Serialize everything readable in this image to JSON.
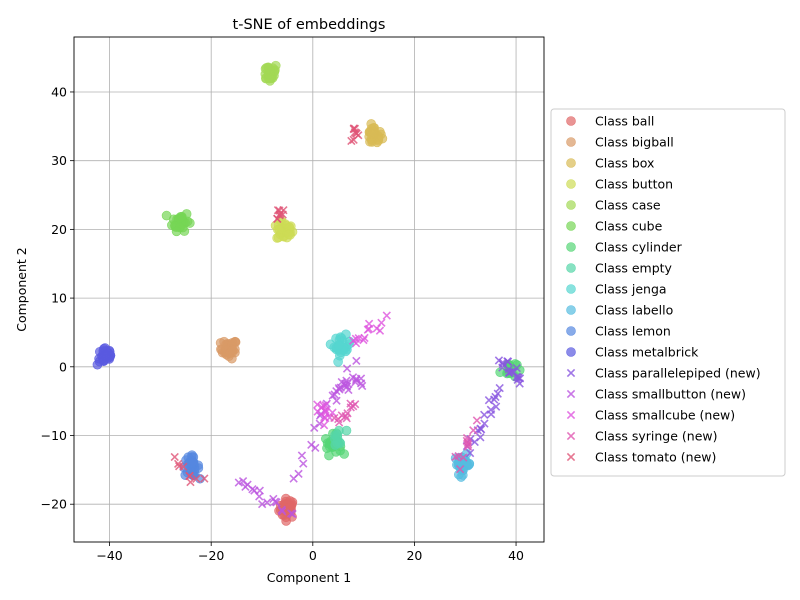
{
  "chart_data": {
    "type": "scatter",
    "title": "t-SNE of embeddings",
    "xlabel": "Component 1",
    "ylabel": "Component 2",
    "xlim": [
      -47,
      45.5
    ],
    "ylim": [
      -25.5,
      48
    ],
    "xticks": [
      -40,
      -20,
      0,
      20,
      40
    ],
    "yticks": [
      -20,
      -10,
      0,
      10,
      20,
      30,
      40
    ],
    "grid": true,
    "legend_position": "right, outside plot",
    "series": [
      {
        "name": "Class ball",
        "marker": "circle",
        "color": "#e06666",
        "centers": [
          [
            -5,
            -20.6
          ]
        ],
        "points": 34
      },
      {
        "name": "Class bigball",
        "marker": "circle",
        "color": "#d99a66",
        "centers": [
          [
            -16.5,
            2.6
          ]
        ],
        "points": 30
      },
      {
        "name": "Class box",
        "marker": "circle",
        "color": "#d8bb55",
        "centers": [
          [
            12,
            33.6
          ]
        ],
        "points": 30
      },
      {
        "name": "Class button",
        "marker": "circle",
        "color": "#cddc55",
        "centers": [
          [
            -5.5,
            19.8
          ]
        ],
        "points": 32
      },
      {
        "name": "Class case",
        "marker": "circle",
        "color": "#a3d955",
        "centers": [
          [
            -8.5,
            42.8
          ]
        ],
        "points": 30
      },
      {
        "name": "Class cube",
        "marker": "circle",
        "color": "#76d655",
        "centers": [
          [
            -26,
            21.2
          ]
        ],
        "points": 30
      },
      {
        "name": "Class cylinder",
        "marker": "circle",
        "color": "#55d676",
        "centers": [
          [
            4,
            -11.3
          ],
          [
            38.5,
            -0.3
          ]
        ],
        "points": [
          26,
          16
        ]
      },
      {
        "name": "Class empty",
        "marker": "circle",
        "color": "#55d6a8",
        "centers": [
          [
            5,
            -10.5
          ]
        ],
        "points": 10
      },
      {
        "name": "Class jenga",
        "marker": "circle",
        "color": "#55d6d0",
        "centers": [
          [
            5.8,
            3.1
          ]
        ],
        "points": 26
      },
      {
        "name": "Class labello",
        "marker": "circle",
        "color": "#55bce0",
        "centers": [
          [
            29.5,
            -14.2
          ]
        ],
        "points": 30
      },
      {
        "name": "Class lemon",
        "marker": "circle",
        "color": "#5588e0",
        "centers": [
          [
            -24,
            -14.5
          ]
        ],
        "points": 30
      },
      {
        "name": "Class metalbrick",
        "marker": "circle",
        "color": "#5a5ae0",
        "centers": [
          [
            -40.8,
            1.6
          ]
        ],
        "points": 32
      },
      {
        "name": "Class parallelepiped (new)",
        "marker": "x",
        "color": "#8855e0",
        "segments": [
          [
            [
              31,
              -12
            ],
            [
              37,
              -3.5
            ]
          ],
          [
            [
              37,
              0.8
            ],
            [
              41,
              -2.2
            ]
          ]
        ],
        "points": 36
      },
      {
        "name": "Class smallbutton (new)",
        "marker": "x",
        "color": "#bb55e0",
        "segments": [
          [
            [
              -15,
              -17
            ],
            [
              -4,
              -21.5
            ]
          ],
          [
            [
              -4,
              -16.5
            ],
            [
              8,
              1
            ]
          ],
          [
            [
              4,
              -4
            ],
            [
              10,
              -2
            ]
          ]
        ],
        "points": 50
      },
      {
        "name": "Class smallcube (new)",
        "marker": "x",
        "color": "#df55df",
        "segments": [
          [
            [
              2,
              -5
            ],
            [
              3,
              -8
            ]
          ],
          [
            [
              8,
              3.5
            ],
            [
              14,
              6.5
            ]
          ]
        ],
        "points": 26
      },
      {
        "name": "Class syringe (new)",
        "marker": "x",
        "color": "#e055b0",
        "segments": [
          [
            [
              5,
              -8
            ],
            [
              8,
              -5
            ]
          ],
          [
            [
              28.5,
              -14
            ],
            [
              32,
              -9
            ]
          ]
        ],
        "points": 22
      },
      {
        "name": "Class tomato (new)",
        "marker": "x",
        "color": "#e05577",
        "segments": [
          [
            [
              -27,
              -13.5
            ],
            [
              -22,
              -16.5
            ]
          ],
          [
            [
              8,
              34
            ],
            [
              9,
              33.6
            ]
          ],
          [
            [
              -6.5,
              22.5
            ],
            [
              -7,
              22
            ]
          ]
        ],
        "points": 28
      }
    ]
  }
}
